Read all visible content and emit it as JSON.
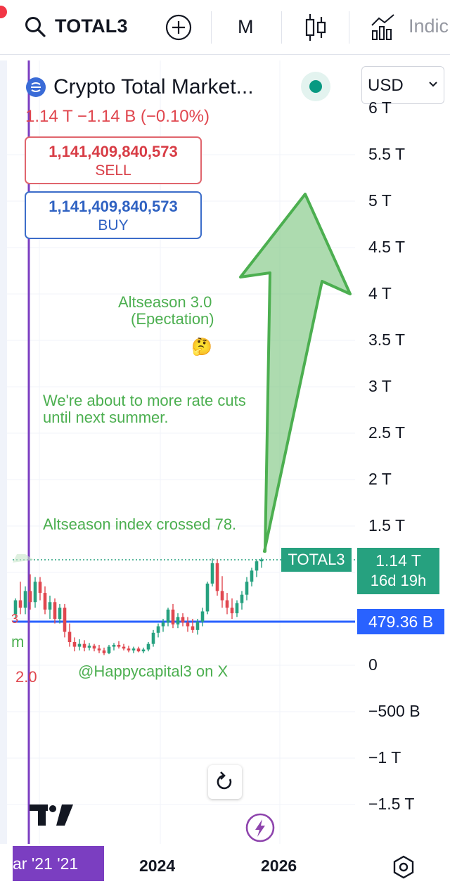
{
  "toolbar": {
    "symbol": "TOTAL3",
    "interval": "M",
    "indicators_label": "Indic",
    "icons": [
      "search-icon",
      "add-icon",
      "candles-icon",
      "indicators-icon"
    ]
  },
  "legend": {
    "title": "Crypto Total Market...",
    "ohlc": "1.14 T  −1.14 B (−0.10%)",
    "currency": "USD"
  },
  "trade": {
    "sell_price": "1,141,409,840,573",
    "sell_label": "SELL",
    "buy_price": "1,141,409,840,573",
    "buy_label": "BUY"
  },
  "annotations": {
    "altseason_line1": "Altseason 3.0",
    "altseason_line2": "(Epectation)",
    "emoji": "🤔",
    "rate_line1": "We're about to more rate cuts",
    "rate_line2": "until next summer.",
    "index": "Altseason index crossed 78.",
    "handle": "@Happycapital3 on X"
  },
  "price_axis": [
    {
      "label": "6 T",
      "value": 6
    },
    {
      "label": "5.5 T",
      "value": 5.5
    },
    {
      "label": "5 T",
      "value": 5
    },
    {
      "label": "4.5 T",
      "value": 4.5
    },
    {
      "label": "4 T",
      "value": 4
    },
    {
      "label": "3.5 T",
      "value": 3.5
    },
    {
      "label": "3 T",
      "value": 3
    },
    {
      "label": "2.5 T",
      "value": 2.5
    },
    {
      "label": "2 T",
      "value": 2
    },
    {
      "label": "1.5 T",
      "value": 1.5
    },
    {
      "label": "0",
      "value": 0
    },
    {
      "label": "−500 B",
      "value": -0.5
    },
    {
      "label": "−1 T",
      "value": -1
    },
    {
      "label": "−1.5 T",
      "value": -1.5
    }
  ],
  "tags": {
    "symbol_tag": "TOTAL3",
    "last_price": "1.14 T",
    "countdown": "16d 19h",
    "hline_price": "479.36 B"
  },
  "left_edge": {
    "cut1": "3",
    "cut2": "m",
    "cut3": "2.0"
  },
  "time_axis": {
    "highlight": "ar '21   '21",
    "label_2024": "2024",
    "label_2026": "2026"
  },
  "colors": {
    "up": "#26a17f",
    "down": "#e0474f",
    "hline": "#2962ff",
    "vline": "#7b3ec1",
    "arrow": "#4caf50"
  },
  "chart_data": {
    "type": "candlestick",
    "unit": "T USD",
    "horizontal_line": 0.47936,
    "last": 1.14,
    "ylim": [
      -1.7,
      6.1
    ],
    "candles": [
      {
        "o": 0.55,
        "h": 0.72,
        "l": 0.5,
        "c": 0.7
      },
      {
        "o": 0.7,
        "h": 0.9,
        "l": 0.55,
        "c": 0.62
      },
      {
        "o": 0.62,
        "h": 0.85,
        "l": 0.55,
        "c": 0.8
      },
      {
        "o": 0.8,
        "h": 0.98,
        "l": 0.6,
        "c": 0.68
      },
      {
        "o": 0.68,
        "h": 0.95,
        "l": 0.62,
        "c": 0.9
      },
      {
        "o": 0.9,
        "h": 0.95,
        "l": 0.7,
        "c": 0.78
      },
      {
        "o": 0.78,
        "h": 0.85,
        "l": 0.55,
        "c": 0.6
      },
      {
        "o": 0.6,
        "h": 0.75,
        "l": 0.5,
        "c": 0.68
      },
      {
        "o": 0.68,
        "h": 0.72,
        "l": 0.45,
        "c": 0.5
      },
      {
        "o": 0.5,
        "h": 0.66,
        "l": 0.45,
        "c": 0.62
      },
      {
        "o": 0.62,
        "h": 0.66,
        "l": 0.3,
        "c": 0.36
      },
      {
        "o": 0.36,
        "h": 0.45,
        "l": 0.2,
        "c": 0.25
      },
      {
        "o": 0.25,
        "h": 0.3,
        "l": 0.15,
        "c": 0.2
      },
      {
        "o": 0.2,
        "h": 0.28,
        "l": 0.16,
        "c": 0.23
      },
      {
        "o": 0.23,
        "h": 0.27,
        "l": 0.15,
        "c": 0.19
      },
      {
        "o": 0.19,
        "h": 0.24,
        "l": 0.16,
        "c": 0.21
      },
      {
        "o": 0.21,
        "h": 0.23,
        "l": 0.15,
        "c": 0.18
      },
      {
        "o": 0.18,
        "h": 0.22,
        "l": 0.13,
        "c": 0.16
      },
      {
        "o": 0.16,
        "h": 0.19,
        "l": 0.11,
        "c": 0.13
      },
      {
        "o": 0.13,
        "h": 0.22,
        "l": 0.12,
        "c": 0.2
      },
      {
        "o": 0.2,
        "h": 0.24,
        "l": 0.16,
        "c": 0.22
      },
      {
        "o": 0.22,
        "h": 0.26,
        "l": 0.18,
        "c": 0.2
      },
      {
        "o": 0.2,
        "h": 0.23,
        "l": 0.16,
        "c": 0.18
      },
      {
        "o": 0.18,
        "h": 0.21,
        "l": 0.14,
        "c": 0.16
      },
      {
        "o": 0.16,
        "h": 0.2,
        "l": 0.13,
        "c": 0.18
      },
      {
        "o": 0.18,
        "h": 0.2,
        "l": 0.14,
        "c": 0.15
      },
      {
        "o": 0.15,
        "h": 0.19,
        "l": 0.13,
        "c": 0.17
      },
      {
        "o": 0.17,
        "h": 0.25,
        "l": 0.15,
        "c": 0.23
      },
      {
        "o": 0.23,
        "h": 0.38,
        "l": 0.2,
        "c": 0.35
      },
      {
        "o": 0.35,
        "h": 0.45,
        "l": 0.3,
        "c": 0.42
      },
      {
        "o": 0.42,
        "h": 0.5,
        "l": 0.36,
        "c": 0.46
      },
      {
        "o": 0.46,
        "h": 0.62,
        "l": 0.42,
        "c": 0.6
      },
      {
        "o": 0.6,
        "h": 0.66,
        "l": 0.4,
        "c": 0.44
      },
      {
        "o": 0.44,
        "h": 0.56,
        "l": 0.4,
        "c": 0.52
      },
      {
        "o": 0.52,
        "h": 0.56,
        "l": 0.42,
        "c": 0.46
      },
      {
        "o": 0.46,
        "h": 0.52,
        "l": 0.36,
        "c": 0.42
      },
      {
        "o": 0.42,
        "h": 0.5,
        "l": 0.35,
        "c": 0.38
      },
      {
        "o": 0.38,
        "h": 0.5,
        "l": 0.33,
        "c": 0.47
      },
      {
        "o": 0.47,
        "h": 0.62,
        "l": 0.42,
        "c": 0.58
      },
      {
        "o": 0.58,
        "h": 0.9,
        "l": 0.55,
        "c": 0.88
      },
      {
        "o": 0.88,
        "h": 1.15,
        "l": 0.85,
        "c": 1.1
      },
      {
        "o": 1.1,
        "h": 1.14,
        "l": 0.75,
        "c": 0.8
      },
      {
        "o": 0.8,
        "h": 0.96,
        "l": 0.62,
        "c": 0.7
      },
      {
        "o": 0.7,
        "h": 0.78,
        "l": 0.55,
        "c": 0.62
      },
      {
        "o": 0.62,
        "h": 0.72,
        "l": 0.5,
        "c": 0.56
      },
      {
        "o": 0.56,
        "h": 0.7,
        "l": 0.52,
        "c": 0.67
      },
      {
        "o": 0.67,
        "h": 0.8,
        "l": 0.6,
        "c": 0.76
      },
      {
        "o": 0.76,
        "h": 0.95,
        "l": 0.7,
        "c": 0.9
      },
      {
        "o": 0.9,
        "h": 1.05,
        "l": 0.85,
        "c": 1.02
      },
      {
        "o": 1.02,
        "h": 1.14,
        "l": 0.95,
        "c": 1.12
      },
      {
        "o": 1.12,
        "h": 1.16,
        "l": 1.05,
        "c": 1.14
      }
    ]
  }
}
